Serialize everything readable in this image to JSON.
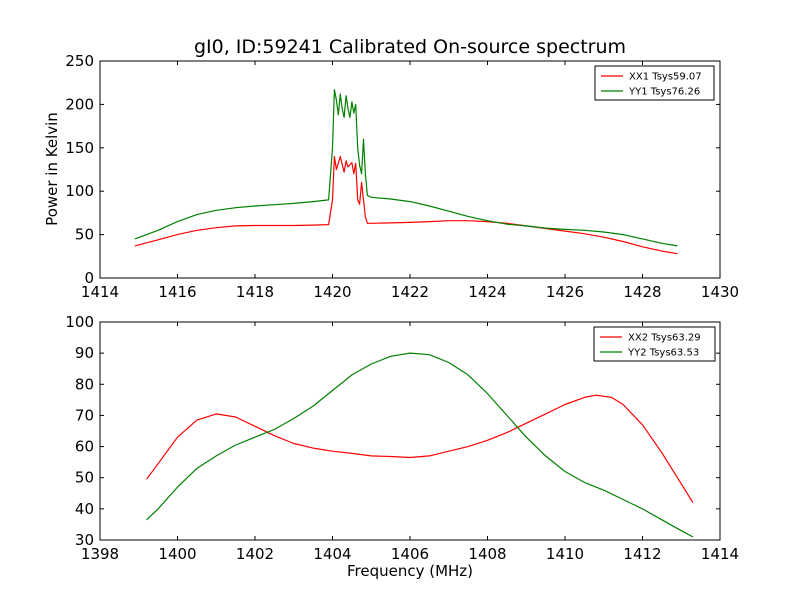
{
  "figure": {
    "title": "gI0, ID:59241 Calibrated On-source spectrum",
    "ylabel": "Power in Kelvin",
    "xlabel": "Frequency (MHz)"
  },
  "colors": {
    "red": "#ff0000",
    "green": "#008000"
  },
  "chart_data": [
    {
      "type": "line",
      "title": "gI0, ID:59241 Calibrated On-source spectrum",
      "xlabel": "",
      "ylabel": "Power in Kelvin",
      "xlim": [
        1414,
        1430
      ],
      "ylim": [
        0,
        250
      ],
      "xticks": [
        "1414",
        "1416",
        "1418",
        "1420",
        "1422",
        "1424",
        "1426",
        "1428",
        "1430"
      ],
      "yticks": [
        "0",
        "50",
        "100",
        "150",
        "200",
        "250"
      ],
      "grid": false,
      "legend": "top-right",
      "series": [
        {
          "name": "XX1 Tsys59.07",
          "color": "#ff0000",
          "x": [
            1414.9,
            1415.5,
            1416.0,
            1416.5,
            1417.0,
            1417.5,
            1418.0,
            1418.5,
            1419.0,
            1419.5,
            1419.9,
            1420.0,
            1420.05,
            1420.1,
            1420.2,
            1420.3,
            1420.35,
            1420.4,
            1420.5,
            1420.55,
            1420.6,
            1420.65,
            1420.7,
            1420.75,
            1420.8,
            1420.85,
            1420.9,
            1421.0,
            1421.5,
            1422.0,
            1422.5,
            1423.0,
            1423.5,
            1424.0,
            1424.5,
            1425.0,
            1425.5,
            1426.0,
            1426.5,
            1427.0,
            1427.5,
            1428.0,
            1428.5,
            1428.9
          ],
          "y": [
            37,
            44,
            50,
            55,
            58,
            60,
            60.5,
            60.5,
            60.5,
            61,
            61.5,
            90,
            140,
            125,
            140,
            122,
            135,
            128,
            133,
            120,
            132,
            90,
            85,
            110,
            90,
            70,
            63,
            63,
            63.5,
            64,
            65,
            66,
            66,
            65,
            63,
            60,
            57,
            54,
            51,
            47,
            42,
            36,
            31,
            28
          ]
        },
        {
          "name": "YY1 Tsys76.26",
          "color": "#008000",
          "x": [
            1414.9,
            1415.5,
            1416.0,
            1416.5,
            1417.0,
            1417.5,
            1418.0,
            1418.5,
            1419.0,
            1419.5,
            1419.9,
            1420.0,
            1420.05,
            1420.1,
            1420.15,
            1420.2,
            1420.25,
            1420.3,
            1420.35,
            1420.4,
            1420.45,
            1420.5,
            1420.55,
            1420.6,
            1420.65,
            1420.7,
            1420.75,
            1420.8,
            1420.85,
            1420.9,
            1421.0,
            1421.5,
            1422.0,
            1422.5,
            1423.0,
            1423.5,
            1424.0,
            1424.5,
            1425.0,
            1425.5,
            1426.0,
            1426.5,
            1427.0,
            1427.5,
            1428.0,
            1428.5,
            1428.9
          ],
          "y": [
            45,
            55,
            65,
            73,
            78,
            81,
            83,
            84.5,
            86,
            88,
            90,
            150,
            217,
            205,
            188,
            212,
            195,
            185,
            210,
            195,
            185,
            203,
            190,
            200,
            150,
            130,
            120,
            160,
            120,
            95,
            93,
            91,
            88,
            83,
            77,
            71,
            66,
            62,
            60,
            57.5,
            56,
            55,
            53,
            50,
            45,
            40,
            37
          ]
        }
      ]
    },
    {
      "type": "line",
      "title": "",
      "xlabel": "Frequency (MHz)",
      "ylabel": "",
      "xlim": [
        1398,
        1414
      ],
      "ylim": [
        30,
        100
      ],
      "xticks": [
        "1398",
        "1400",
        "1402",
        "1404",
        "1406",
        "1408",
        "1410",
        "1412",
        "1414"
      ],
      "yticks": [
        "30",
        "40",
        "50",
        "60",
        "70",
        "80",
        "90",
        "100"
      ],
      "grid": false,
      "legend": "top-right",
      "series": [
        {
          "name": "XX2 Tsys63.29",
          "color": "#ff0000",
          "x": [
            1399.2,
            1399.5,
            1400.0,
            1400.5,
            1401.0,
            1401.5,
            1402.0,
            1402.5,
            1403.0,
            1403.5,
            1404.0,
            1404.5,
            1405.0,
            1405.5,
            1406.0,
            1406.5,
            1407.0,
            1407.5,
            1408.0,
            1408.5,
            1409.0,
            1409.5,
            1410.0,
            1410.5,
            1410.8,
            1411.2,
            1411.5,
            1412.0,
            1412.5,
            1413.0,
            1413.3
          ],
          "y": [
            49.5,
            54.5,
            63,
            68.5,
            70.5,
            69.5,
            66.5,
            63.5,
            61,
            59.5,
            58.5,
            57.8,
            57,
            56.8,
            56.5,
            57,
            58.5,
            60,
            62,
            64.5,
            67.5,
            70.5,
            73.5,
            75.8,
            76.5,
            75.8,
            73.5,
            67,
            58,
            48,
            42
          ]
        },
        {
          "name": "YY2 Tsys63.53",
          "color": "#008000",
          "x": [
            1399.2,
            1399.5,
            1400.0,
            1400.5,
            1401.0,
            1401.5,
            1402.0,
            1402.5,
            1403.0,
            1403.5,
            1404.0,
            1404.5,
            1405.0,
            1405.5,
            1406.0,
            1406.5,
            1407.0,
            1407.5,
            1408.0,
            1408.5,
            1409.0,
            1409.5,
            1410.0,
            1410.5,
            1411.0,
            1411.5,
            1412.0,
            1412.5,
            1413.0,
            1413.3
          ],
          "y": [
            36.5,
            40,
            47,
            53,
            57,
            60.5,
            63,
            65.5,
            69,
            73,
            78,
            83,
            86.5,
            89,
            90,
            89.5,
            87,
            83,
            77,
            70,
            63,
            57,
            52,
            48.5,
            46,
            43,
            40,
            36.5,
            33,
            31
          ]
        }
      ]
    }
  ]
}
